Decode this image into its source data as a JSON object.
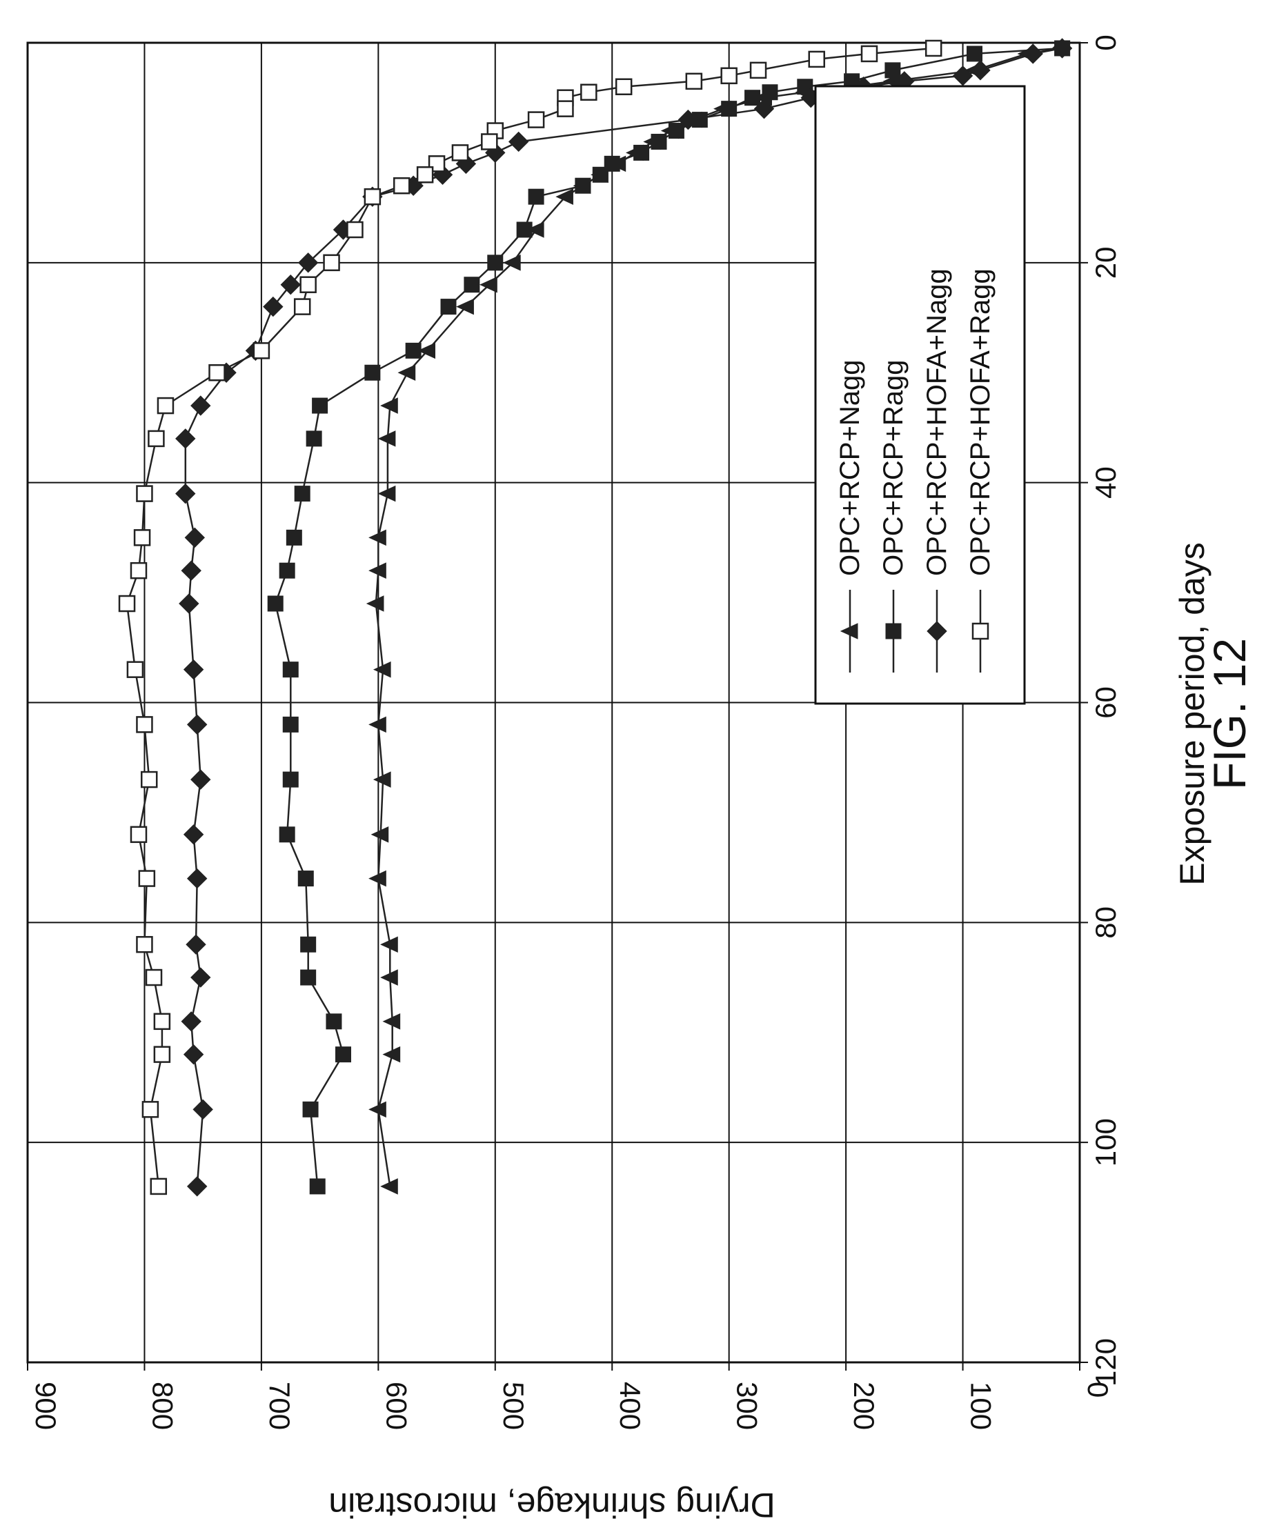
{
  "chart_data": {
    "type": "line",
    "figure_label": "FIG. 12",
    "xlabel": "Exposure period, days",
    "ylabel": "Drying shrinkage, microstrain",
    "xlim": [
      0,
      120
    ],
    "ylim": [
      0,
      900
    ],
    "x_ticks": [
      "0",
      "20",
      "40",
      "60",
      "80",
      "100",
      "120"
    ],
    "y_ticks": [
      "0",
      "100",
      "200",
      "300",
      "400",
      "500",
      "600",
      "700",
      "800",
      "900"
    ],
    "grid": true,
    "legend_position": "top-right",
    "orientation": "rotated 90 degrees clockwise on the page",
    "series": [
      {
        "name": "OPC+RCP+Nagg",
        "marker": "triangle",
        "points": [
          [
            0.5,
            15
          ],
          [
            1,
            45
          ],
          [
            2.5,
            90
          ],
          [
            3.5,
            160
          ],
          [
            4,
            195
          ],
          [
            4.5,
            235
          ],
          [
            5,
            270
          ],
          [
            6,
            305
          ],
          [
            7,
            330
          ],
          [
            8,
            350
          ],
          [
            9,
            365
          ],
          [
            10,
            380
          ],
          [
            11,
            395
          ],
          [
            12,
            410
          ],
          [
            13,
            425
          ],
          [
            14,
            440
          ],
          [
            17,
            465
          ],
          [
            20,
            485
          ],
          [
            22,
            505
          ],
          [
            24,
            525
          ],
          [
            28,
            558
          ],
          [
            30,
            575
          ],
          [
            33,
            590
          ],
          [
            36,
            592
          ],
          [
            41,
            592
          ],
          [
            45,
            600
          ],
          [
            48,
            600
          ],
          [
            51,
            602
          ],
          [
            57,
            596
          ],
          [
            62,
            600
          ],
          [
            67,
            596
          ],
          [
            72,
            598
          ],
          [
            76,
            600
          ],
          [
            82,
            590
          ],
          [
            85,
            590
          ],
          [
            89,
            588
          ],
          [
            92,
            588
          ],
          [
            97,
            600
          ],
          [
            104,
            590
          ]
        ]
      },
      {
        "name": "OPC+RCP+Ragg",
        "marker": "filled-square",
        "points": [
          [
            0.5,
            15
          ],
          [
            1,
            90
          ],
          [
            2.5,
            160
          ],
          [
            3.5,
            195
          ],
          [
            4,
            235
          ],
          [
            4.5,
            265
          ],
          [
            5,
            280
          ],
          [
            6,
            300
          ],
          [
            7,
            325
          ],
          [
            8,
            345
          ],
          [
            9,
            360
          ],
          [
            10,
            375
          ],
          [
            11,
            400
          ],
          [
            12,
            410
          ],
          [
            13,
            425
          ],
          [
            14,
            465
          ],
          [
            17,
            475
          ],
          [
            20,
            500
          ],
          [
            22,
            520
          ],
          [
            24,
            540
          ],
          [
            28,
            570
          ],
          [
            30,
            605
          ],
          [
            33,
            650
          ],
          [
            36,
            655
          ],
          [
            41,
            665
          ],
          [
            45,
            672
          ],
          [
            48,
            678
          ],
          [
            51,
            688
          ],
          [
            57,
            675
          ],
          [
            62,
            675
          ],
          [
            67,
            675
          ],
          [
            72,
            678
          ],
          [
            76,
            662
          ],
          [
            82,
            660
          ],
          [
            85,
            660
          ],
          [
            89,
            638
          ],
          [
            92,
            630
          ],
          [
            97,
            658
          ],
          [
            104,
            652
          ]
        ]
      },
      {
        "name": "OPC+RCP+HOFA+Nagg",
        "marker": "diamond",
        "points": [
          [
            0.5,
            15
          ],
          [
            1,
            40
          ],
          [
            2.5,
            85
          ],
          [
            3,
            100
          ],
          [
            3.5,
            150
          ],
          [
            4,
            185
          ],
          [
            5,
            230
          ],
          [
            6,
            270
          ],
          [
            7,
            335
          ],
          [
            9,
            480
          ],
          [
            10,
            500
          ],
          [
            11,
            525
          ],
          [
            12,
            545
          ],
          [
            13,
            570
          ],
          [
            14,
            605
          ],
          [
            17,
            630
          ],
          [
            20,
            660
          ],
          [
            22,
            675
          ],
          [
            24,
            690
          ],
          [
            28,
            705
          ],
          [
            30,
            730
          ],
          [
            33,
            752
          ],
          [
            36,
            765
          ],
          [
            41,
            765
          ],
          [
            45,
            757
          ],
          [
            48,
            760
          ],
          [
            51,
            762
          ],
          [
            57,
            758
          ],
          [
            62,
            755
          ],
          [
            67,
            752
          ],
          [
            72,
            758
          ],
          [
            76,
            755
          ],
          [
            82,
            756
          ],
          [
            85,
            752
          ],
          [
            89,
            760
          ],
          [
            92,
            758
          ],
          [
            97,
            750
          ],
          [
            104,
            755
          ]
        ]
      },
      {
        "name": "OPC+RCP+HOFA+Ragg",
        "marker": "open-square",
        "points": [
          [
            0.5,
            125
          ],
          [
            1,
            180
          ],
          [
            1.5,
            225
          ],
          [
            2.5,
            275
          ],
          [
            3,
            300
          ],
          [
            3.5,
            330
          ],
          [
            4,
            390
          ],
          [
            4.5,
            420
          ],
          [
            5,
            440
          ],
          [
            6,
            440
          ],
          [
            7,
            465
          ],
          [
            8,
            500
          ],
          [
            9,
            505
          ],
          [
            10,
            530
          ],
          [
            11,
            550
          ],
          [
            12,
            560
          ],
          [
            13,
            580
          ],
          [
            14,
            605
          ],
          [
            17,
            620
          ],
          [
            20,
            640
          ],
          [
            22,
            660
          ],
          [
            24,
            665
          ],
          [
            28,
            700
          ],
          [
            30,
            738
          ],
          [
            33,
            782
          ],
          [
            36,
            790
          ],
          [
            41,
            800
          ],
          [
            45,
            802
          ],
          [
            48,
            805
          ],
          [
            51,
            815
          ],
          [
            57,
            808
          ],
          [
            62,
            800
          ],
          [
            67,
            796
          ],
          [
            72,
            805
          ],
          [
            76,
            798
          ],
          [
            82,
            800
          ],
          [
            85,
            792
          ],
          [
            89,
            785
          ],
          [
            92,
            785
          ],
          [
            97,
            795
          ],
          [
            104,
            788
          ]
        ]
      }
    ]
  }
}
